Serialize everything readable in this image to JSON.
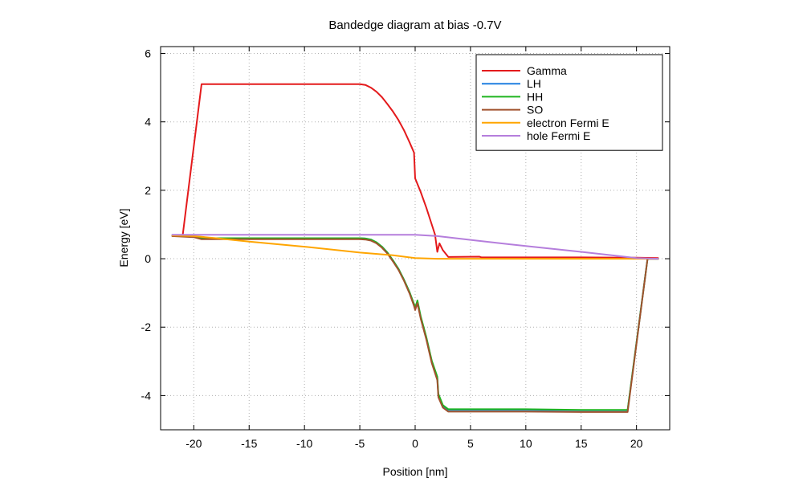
{
  "chart_data": {
    "type": "line",
    "title": "Bandedge diagram at bias -0.7V",
    "xlabel": "Position [nm]",
    "ylabel": "Energy [eV]",
    "xlim": [
      -23,
      23
    ],
    "ylim": [
      -5,
      6.2
    ],
    "xticks": [
      -20,
      -15,
      -10,
      -5,
      0,
      5,
      10,
      15,
      20
    ],
    "yticks": [
      -4,
      -2,
      0,
      2,
      4,
      6
    ],
    "xtick_labels": [
      "-20",
      "-15",
      "-10",
      "-5",
      "0",
      "5",
      "10",
      "15",
      "20"
    ],
    "ytick_labels": [
      "-4",
      "-2",
      "0",
      "2",
      "4",
      "6"
    ],
    "grid": true,
    "legend_position": "top-right",
    "series": [
      {
        "name": "Gamma",
        "color": "#e41a1c",
        "points": [
          [
            -21,
            0.7
          ],
          [
            -19.3,
            5.1
          ],
          [
            -17,
            5.1
          ],
          [
            -10,
            5.1
          ],
          [
            -5,
            5.1
          ],
          [
            -4.5,
            5.08
          ],
          [
            -4,
            5.0
          ],
          [
            -3.5,
            4.88
          ],
          [
            -3,
            4.72
          ],
          [
            -2.5,
            4.52
          ],
          [
            -2,
            4.3
          ],
          [
            -1.5,
            4.05
          ],
          [
            -1,
            3.75
          ],
          [
            -0.5,
            3.4
          ],
          [
            -0.1,
            3.1
          ],
          [
            0,
            2.35
          ],
          [
            0.5,
            1.95
          ],
          [
            1,
            1.5
          ],
          [
            1.5,
            1.0
          ],
          [
            1.8,
            0.7
          ],
          [
            2.0,
            0.2
          ],
          [
            2.2,
            0.45
          ],
          [
            2.5,
            0.25
          ],
          [
            3,
            0.05
          ],
          [
            5.8,
            0.06
          ],
          [
            6,
            0.04
          ],
          [
            10,
            0.04
          ],
          [
            15,
            0.04
          ],
          [
            20,
            0.03
          ],
          [
            22,
            0.02
          ]
        ]
      },
      {
        "name": "LH",
        "color": "#1f7fe0",
        "points": [
          [
            -22,
            0.68
          ],
          [
            -20,
            0.66
          ],
          [
            -19.3,
            0.6
          ],
          [
            -10,
            0.6
          ],
          [
            -5,
            0.6
          ],
          [
            -4.5,
            0.59
          ],
          [
            -4,
            0.56
          ],
          [
            -3.5,
            0.48
          ],
          [
            -3,
            0.35
          ],
          [
            -2.5,
            0.18
          ],
          [
            -2,
            -0.05
          ],
          [
            -1.5,
            -0.3
          ],
          [
            -1,
            -0.62
          ],
          [
            -0.5,
            -0.98
          ],
          [
            -0.1,
            -1.35
          ],
          [
            0,
            -1.45
          ],
          [
            0.2,
            -1.25
          ],
          [
            0.5,
            -1.7
          ],
          [
            1,
            -2.3
          ],
          [
            1.5,
            -3.0
          ],
          [
            2,
            -3.5
          ],
          [
            2.1,
            -4.0
          ],
          [
            2.5,
            -4.3
          ],
          [
            3,
            -4.42
          ],
          [
            10,
            -4.42
          ],
          [
            15,
            -4.43
          ],
          [
            19.2,
            -4.43
          ],
          [
            21,
            0.0
          ],
          [
            22,
            0.0
          ]
        ]
      },
      {
        "name": "HH",
        "color": "#1fb51f",
        "points": [
          [
            -22,
            0.68
          ],
          [
            -20,
            0.66
          ],
          [
            -19.3,
            0.6
          ],
          [
            -10,
            0.6
          ],
          [
            -5,
            0.6
          ],
          [
            -4.5,
            0.59
          ],
          [
            -4,
            0.56
          ],
          [
            -3.5,
            0.48
          ],
          [
            -3,
            0.35
          ],
          [
            -2.5,
            0.18
          ],
          [
            -2,
            -0.05
          ],
          [
            -1.5,
            -0.3
          ],
          [
            -1,
            -0.62
          ],
          [
            -0.5,
            -0.98
          ],
          [
            -0.1,
            -1.32
          ],
          [
            0,
            -1.45
          ],
          [
            0.2,
            -1.22
          ],
          [
            0.5,
            -1.68
          ],
          [
            1,
            -2.28
          ],
          [
            1.5,
            -2.98
          ],
          [
            2,
            -3.45
          ],
          [
            2.1,
            -3.95
          ],
          [
            2.5,
            -4.28
          ],
          [
            3,
            -4.4
          ],
          [
            10,
            -4.4
          ],
          [
            15,
            -4.42
          ],
          [
            19.2,
            -4.42
          ],
          [
            21,
            0.0
          ],
          [
            22,
            0.0
          ]
        ]
      },
      {
        "name": "SO",
        "color": "#a0522d",
        "points": [
          [
            -22,
            0.66
          ],
          [
            -20,
            0.63
          ],
          [
            -19.3,
            0.57
          ],
          [
            -10,
            0.57
          ],
          [
            -5,
            0.57
          ],
          [
            -4.5,
            0.56
          ],
          [
            -4,
            0.53
          ],
          [
            -3.5,
            0.45
          ],
          [
            -3,
            0.32
          ],
          [
            -2.5,
            0.15
          ],
          [
            -2,
            -0.08
          ],
          [
            -1.5,
            -0.33
          ],
          [
            -1,
            -0.65
          ],
          [
            -0.5,
            -1.02
          ],
          [
            -0.1,
            -1.38
          ],
          [
            0,
            -1.5
          ],
          [
            0.2,
            -1.3
          ],
          [
            0.5,
            -1.75
          ],
          [
            1,
            -2.35
          ],
          [
            1.5,
            -3.05
          ],
          [
            2,
            -3.55
          ],
          [
            2.1,
            -4.05
          ],
          [
            2.5,
            -4.35
          ],
          [
            3,
            -4.47
          ],
          [
            10,
            -4.47
          ],
          [
            15,
            -4.48
          ],
          [
            19.2,
            -4.48
          ],
          [
            21,
            0.0
          ],
          [
            22,
            0.0
          ]
        ]
      },
      {
        "name": "electron Fermi E",
        "color": "#ffa500",
        "points": [
          [
            -22,
            0.68
          ],
          [
            -20,
            0.66
          ],
          [
            -18,
            0.6
          ],
          [
            -15,
            0.5
          ],
          [
            -10,
            0.35
          ],
          [
            -5,
            0.18
          ],
          [
            -2,
            0.1
          ],
          [
            0,
            0.02
          ],
          [
            2,
            0.0
          ],
          [
            5,
            0.0
          ],
          [
            10,
            0.0
          ],
          [
            15,
            0.0
          ],
          [
            20,
            0.0
          ],
          [
            22,
            0.0
          ]
        ]
      },
      {
        "name": "hole Fermi E",
        "color": "#b57edc",
        "points": [
          [
            -22,
            0.7
          ],
          [
            -15,
            0.7
          ],
          [
            -10,
            0.7
          ],
          [
            -5,
            0.7
          ],
          [
            0,
            0.7
          ],
          [
            2,
            0.66
          ],
          [
            5,
            0.55
          ],
          [
            10,
            0.37
          ],
          [
            15,
            0.2
          ],
          [
            20,
            0.02
          ],
          [
            22,
            0.0
          ]
        ]
      }
    ]
  }
}
